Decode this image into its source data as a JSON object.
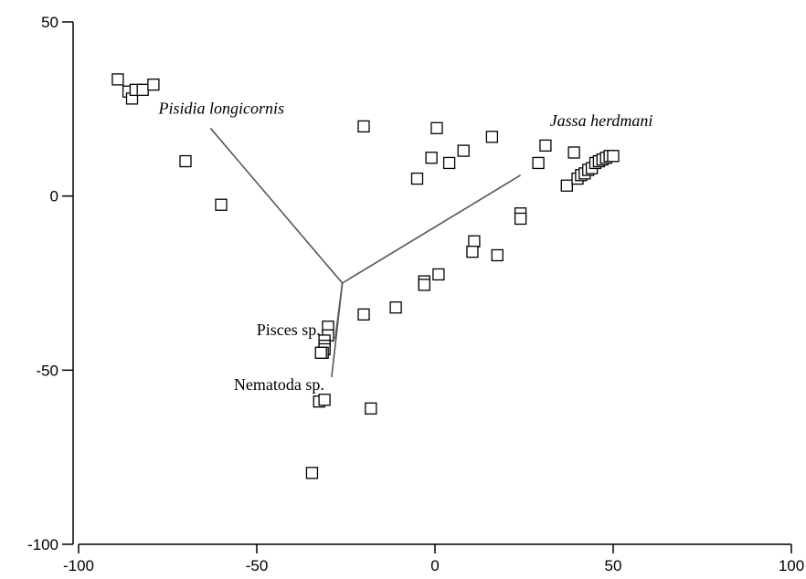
{
  "chart_data": {
    "type": "scatter",
    "title": "",
    "xlabel": "",
    "ylabel": "",
    "xlim": [
      -100,
      100
    ],
    "ylim": [
      -100,
      50
    ],
    "x_ticks": [
      -100,
      -50,
      0,
      50,
      100
    ],
    "y_ticks": [
      50,
      0,
      -50,
      -100
    ],
    "grid": false,
    "marker": "open-square",
    "colors": {
      "points": "#000000",
      "vectors": "#555555",
      "axes": "#000000"
    },
    "points": [
      {
        "x": -89,
        "y": 33.5
      },
      {
        "x": -86,
        "y": 30
      },
      {
        "x": -85,
        "y": 28
      },
      {
        "x": -84,
        "y": 30.5
      },
      {
        "x": -82,
        "y": 30.5
      },
      {
        "x": -79,
        "y": 32
      },
      {
        "x": -70,
        "y": 10
      },
      {
        "x": -60,
        "y": -2.5
      },
      {
        "x": -20,
        "y": 20
      },
      {
        "x": 0.5,
        "y": 19.5
      },
      {
        "x": 16,
        "y": 17
      },
      {
        "x": -1,
        "y": 11
      },
      {
        "x": 4,
        "y": 9.5
      },
      {
        "x": 8,
        "y": 13
      },
      {
        "x": -5,
        "y": 5
      },
      {
        "x": 29,
        "y": 9.5
      },
      {
        "x": 31,
        "y": 14.5
      },
      {
        "x": 39,
        "y": 12.5
      },
      {
        "x": 37,
        "y": 3
      },
      {
        "x": 40,
        "y": 5
      },
      {
        "x": 41,
        "y": 6
      },
      {
        "x": 42,
        "y": 6.5
      },
      {
        "x": 43,
        "y": 7.5
      },
      {
        "x": 44,
        "y": 8
      },
      {
        "x": 45,
        "y": 9.5
      },
      {
        "x": 46,
        "y": 10
      },
      {
        "x": 47,
        "y": 10.5
      },
      {
        "x": 48,
        "y": 11
      },
      {
        "x": 49,
        "y": 11.5
      },
      {
        "x": 50,
        "y": 11.5
      },
      {
        "x": 24,
        "y": -5
      },
      {
        "x": 24,
        "y": -6.5
      },
      {
        "x": 11,
        "y": -13
      },
      {
        "x": 10.5,
        "y": -16
      },
      {
        "x": 17.5,
        "y": -17
      },
      {
        "x": 1,
        "y": -22.5
      },
      {
        "x": -3,
        "y": -24.5
      },
      {
        "x": -3,
        "y": -25.5
      },
      {
        "x": -11,
        "y": -32
      },
      {
        "x": -20,
        "y": -34
      },
      {
        "x": -30,
        "y": -37.5
      },
      {
        "x": -30,
        "y": -40
      },
      {
        "x": -31,
        "y": -41.5
      },
      {
        "x": -31,
        "y": -43
      },
      {
        "x": -31,
        "y": -44
      },
      {
        "x": -31.5,
        "y": -45
      },
      {
        "x": -32,
        "y": -45
      },
      {
        "x": -32.5,
        "y": -59
      },
      {
        "x": -31,
        "y": -58.5
      },
      {
        "x": -18,
        "y": -61
      },
      {
        "x": -34.5,
        "y": -79.5
      }
    ],
    "vectors": [
      {
        "label": "Pisidia longicornis",
        "from": [
          -26,
          -25
        ],
        "to": [
          -63,
          19.5
        ],
        "italic": true
      },
      {
        "label": "Jassa herdmani",
        "from": [
          -26,
          -25
        ],
        "to": [
          24,
          6
        ],
        "italic": true
      },
      {
        "label": "Pisces sp.",
        "from": [
          -26,
          -25
        ],
        "to": [
          -28,
          -41
        ],
        "italic": false
      },
      {
        "label": "Nematoda sp.",
        "from": [
          -26,
          -25
        ],
        "to": [
          -29,
          -52
        ],
        "italic": false
      }
    ]
  }
}
